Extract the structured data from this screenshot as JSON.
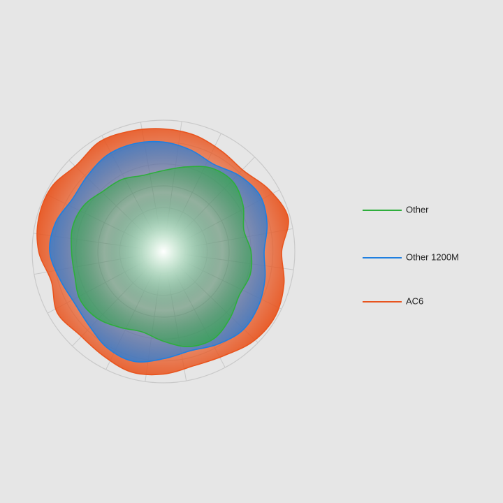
{
  "chart_data": {
    "type": "radar",
    "rlim": [
      0,
      6
    ],
    "rticks": [
      1,
      2,
      3,
      4,
      5,
      6
    ],
    "grid": true,
    "series": [
      {
        "name": "AC6",
        "color": "#e8541e",
        "values": [
          5.6,
          5.5,
          5.3,
          5.2,
          5.6,
          5.9,
          5.4,
          5.7,
          5.9,
          5.8,
          5.5,
          5.4,
          5.6,
          5.7,
          5.5,
          5.4,
          5.6,
          5.3,
          5.7,
          5.9,
          5.9,
          5.6,
          5.8,
          5.7
        ]
      },
      {
        "name": "Other 1200M",
        "color": "#1f7fe0",
        "values": [
          5.0,
          4.8,
          4.6,
          4.9,
          5.1,
          4.9,
          4.6,
          4.8,
          5.0,
          5.1,
          4.9,
          4.7,
          4.9,
          5.2,
          5.1,
          4.8,
          4.7,
          4.9,
          5.2,
          5.1,
          4.8,
          4.9,
          5.1,
          5.1
        ]
      },
      {
        "name": "Other",
        "color": "#2eae3c",
        "values": [
          3.7,
          4.0,
          4.4,
          4.5,
          4.2,
          3.8,
          4.0,
          4.1,
          4.0,
          4.3,
          4.6,
          4.5,
          4.1,
          3.8,
          4.0,
          4.3,
          4.4,
          4.2,
          4.2,
          4.3,
          4.2,
          3.9,
          3.8,
          3.6
        ]
      }
    ]
  }
}
